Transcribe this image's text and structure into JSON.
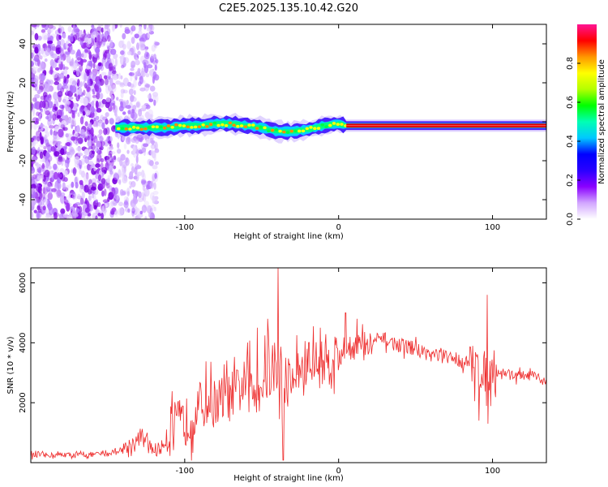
{
  "title": "C2E5.2025.135.10.42.G20",
  "colors": {
    "snr_line": "#ee2c2c",
    "ridge_core": "#dd0000",
    "scatter": "#7a00e0",
    "frame": "#000000"
  },
  "chart_data": [
    {
      "id": "spectrogram",
      "type": "heatmap",
      "title": "C2E5.2025.135.10.42.G20",
      "xlabel": "Height of straight line (km)",
      "ylabel": "Frequency (Hz)",
      "xlim": [
        -200,
        135
      ],
      "ylim": [
        -50,
        50
      ],
      "xticks": [
        -100,
        0,
        100
      ],
      "yticks": [
        -40,
        -20,
        0,
        20,
        40
      ],
      "ridge": {
        "x": [
          -145,
          -130,
          -120,
          -110,
          -100,
          -90,
          -80,
          -70,
          -60,
          -50,
          -40,
          -30,
          -20,
          -10,
          0,
          5,
          20,
          40,
          60,
          80,
          100,
          120,
          135
        ],
        "y": [
          -3,
          -3,
          -3,
          -3,
          -2,
          -2,
          -1,
          -1,
          -2,
          -3,
          -5,
          -5,
          -4,
          -2,
          -1,
          -2,
          -2,
          -2,
          -2,
          -2,
          -2,
          -2,
          -2
        ]
      },
      "noise_region": {
        "x_from": -200,
        "x_to": -118,
        "dense_until": -145
      },
      "colorbar": {
        "label": "Normalized spectral amplitude",
        "range": [
          0,
          1
        ],
        "ticks": [
          0.0,
          0.2,
          0.4,
          0.6,
          0.8
        ],
        "colors": [
          "#ffffff",
          "#d2a6ff",
          "#8a00ff",
          "#2a00ff",
          "#0000ff",
          "#00c8ff",
          "#00ffb4",
          "#00ff00",
          "#b4ff00",
          "#ffff00",
          "#ff9600",
          "#ff0000",
          "#ff1493"
        ]
      }
    },
    {
      "id": "snr",
      "type": "line",
      "xlabel": "Height of straight line (km)",
      "ylabel": "SNR (10 * v/v)",
      "xlim": [
        -200,
        135
      ],
      "ylim": [
        0,
        6500
      ],
      "xticks": [
        -100,
        0,
        100
      ],
      "yticks": [
        2000,
        4000,
        6000
      ],
      "series": [
        {
          "name": "SNR",
          "x": [
            -200,
            -190,
            -180,
            -170,
            -160,
            -150,
            -140,
            -130,
            -125,
            -120,
            -115,
            -110,
            -105,
            -100,
            -95,
            -90,
            -85,
            -80,
            -75,
            -70,
            -65,
            -60,
            -55,
            -50,
            -45,
            -40,
            -35,
            -30,
            -25,
            -20,
            -15,
            -10,
            -5,
            0,
            5,
            10,
            15,
            20,
            25,
            30,
            35,
            40,
            45,
            50,
            55,
            60,
            65,
            70,
            75,
            80,
            85,
            90,
            95,
            100,
            105,
            110,
            115,
            120,
            125,
            130,
            135
          ],
          "y": [
            250,
            250,
            260,
            260,
            270,
            300,
            450,
            800,
            700,
            400,
            500,
            1000,
            1300,
            1300,
            1600,
            1900,
            2000,
            2000,
            2100,
            2200,
            2400,
            2700,
            2300,
            2700,
            2900,
            3000,
            2700,
            2800,
            3100,
            3300,
            3300,
            3400,
            3500,
            3600,
            3900,
            3900,
            3900,
            3900,
            4100,
            4100,
            4000,
            3900,
            3900,
            3800,
            3700,
            3600,
            3600,
            3500,
            3500,
            3400,
            3300,
            3200,
            3000,
            3100,
            3000,
            3000,
            2900,
            2900,
            2900,
            2800,
            2700
          ]
        }
      ],
      "noise_amplitude": [
        {
          "x_to": -140,
          "amp": 150
        },
        {
          "x_to": -112,
          "amp": 450
        },
        {
          "x_to": -60,
          "amp": 1500
        },
        {
          "x_to": 0,
          "amp": 1600
        },
        {
          "x_to": 20,
          "amp": 900
        },
        {
          "x_to": 85,
          "amp": 450
        },
        {
          "x_to": 102,
          "amp": 1300
        },
        {
          "x_to": 135,
          "amp": 300
        }
      ],
      "spikes": [
        {
          "x": -39.5,
          "y": 6500
        },
        {
          "x": -46,
          "y": 4800
        },
        {
          "x": 96.5,
          "y": 5600
        },
        {
          "x": 91,
          "y": 1400
        },
        {
          "x": 97,
          "y": 1300
        },
        {
          "x": -36,
          "y": 80
        },
        {
          "x": -53,
          "y": 4500
        },
        {
          "x": 4.5,
          "y": 5000
        },
        {
          "x": 12,
          "y": 4800
        }
      ]
    }
  ]
}
